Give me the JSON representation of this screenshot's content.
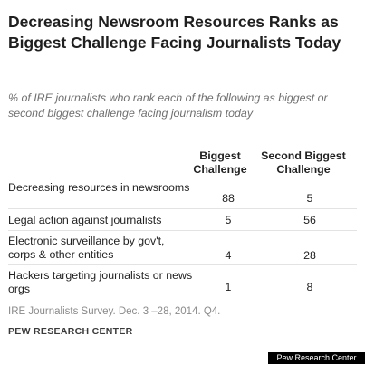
{
  "chart_data": {
    "type": "table",
    "title": "Decreasing Newsroom Resources Ranks as Biggest Challenge Facing Journalists Today",
    "subtitle": "% of IRE journalists who rank each of the following as biggest or second biggest challenge facing journalism today",
    "columns": [
      "Biggest Challenge",
      "Second Biggest Challenge"
    ],
    "rows": [
      {
        "label": "Decreasing resources in newsrooms",
        "values": [
          88,
          5
        ]
      },
      {
        "label": "Legal action against journalists",
        "values": [
          5,
          56
        ]
      },
      {
        "label": "Electronic surveillance by gov't, corps & other entities",
        "values": [
          4,
          28
        ]
      },
      {
        "label": "Hackers targeting journalists or news orgs",
        "values": [
          1,
          8
        ]
      }
    ]
  },
  "source_note": "IRE Journalists Survey. Dec. 3 –28, 2014. Q4.",
  "organization": "PEW RESEARCH CENTER",
  "credit": "Pew Research Center"
}
